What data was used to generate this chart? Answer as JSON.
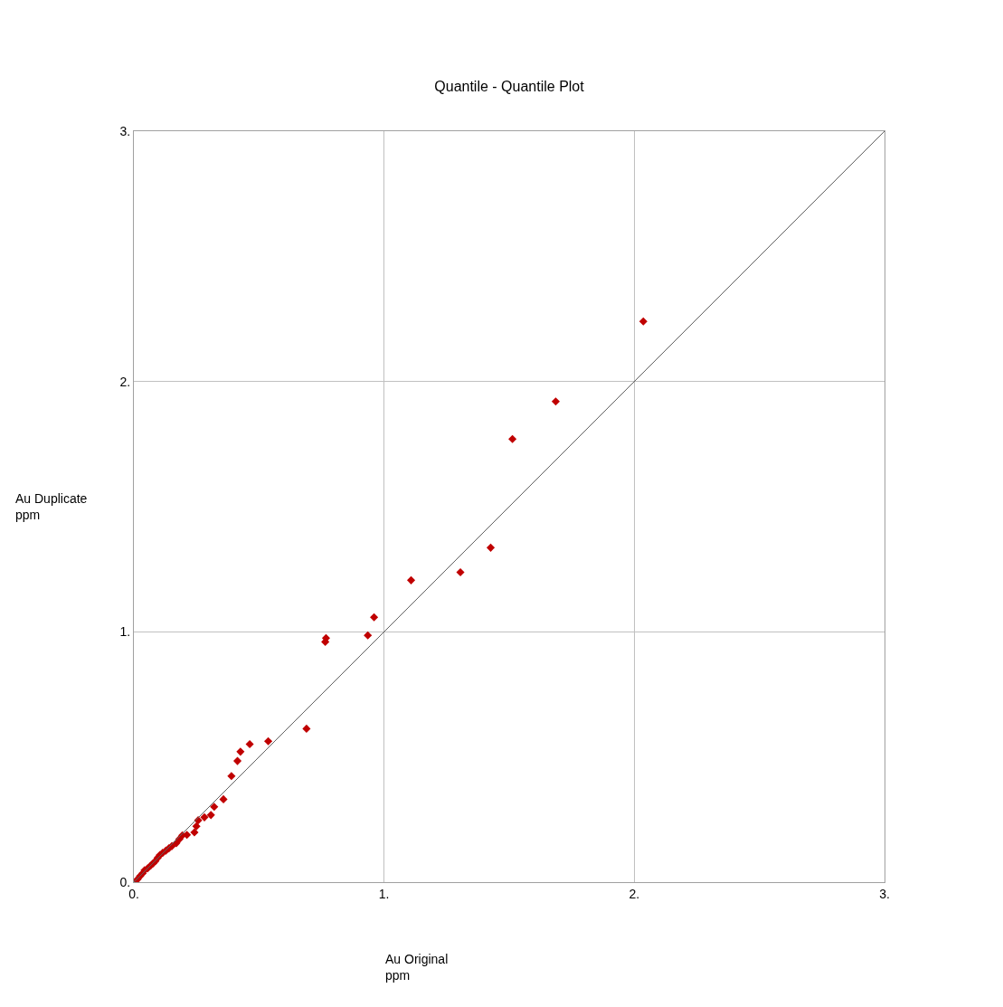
{
  "chart_data": {
    "type": "scatter",
    "title": "Quantile - Quantile Plot",
    "xlabel": "Au Original\nppm",
    "ylabel": "Au Duplicate\nppm",
    "xlim": [
      0,
      3
    ],
    "ylim": [
      0,
      3
    ],
    "xticks": [
      {
        "value": 0,
        "label": "0."
      },
      {
        "value": 1,
        "label": "1."
      },
      {
        "value": 2,
        "label": "2."
      },
      {
        "value": 3,
        "label": "3."
      }
    ],
    "yticks": [
      {
        "value": 0,
        "label": "0."
      },
      {
        "value": 1,
        "label": "1."
      },
      {
        "value": 2,
        "label": "2."
      },
      {
        "value": 3,
        "label": "3."
      }
    ],
    "grid": true,
    "legend": false,
    "series": [
      {
        "color": "#c00000",
        "marker": "diamond",
        "x": [
          0.007,
          0.015,
          0.025,
          0.035,
          0.043,
          0.055,
          0.067,
          0.077,
          0.086,
          0.095,
          0.104,
          0.115,
          0.128,
          0.14,
          0.152,
          0.17,
          0.182,
          0.194,
          0.212,
          0.242,
          0.25,
          0.257,
          0.282,
          0.308,
          0.321,
          0.358,
          0.39,
          0.414,
          0.426,
          0.463,
          0.537,
          0.69,
          0.765,
          0.768,
          0.935,
          0.96,
          1.108,
          1.305,
          1.426,
          1.513,
          1.686,
          2.036
        ],
        "values": [
          0.0,
          0.012,
          0.024,
          0.035,
          0.048,
          0.055,
          0.066,
          0.075,
          0.084,
          0.097,
          0.108,
          0.117,
          0.126,
          0.135,
          0.144,
          0.156,
          0.172,
          0.187,
          0.189,
          0.199,
          0.223,
          0.247,
          0.259,
          0.268,
          0.301,
          0.331,
          0.424,
          0.484,
          0.521,
          0.551,
          0.563,
          0.613,
          0.96,
          0.975,
          0.986,
          1.058,
          1.206,
          1.238,
          1.336,
          1.77,
          1.92,
          2.24
        ]
      },
      {
        "type": "line",
        "color": "#606060",
        "line_style": "solid",
        "marker": "none",
        "x": [
          0,
          3
        ],
        "values": [
          0,
          3
        ]
      }
    ]
  }
}
